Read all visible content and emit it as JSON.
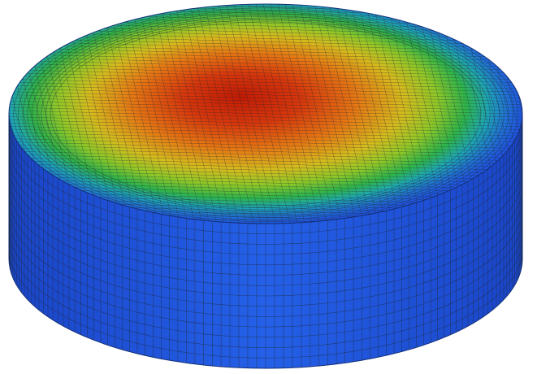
{
  "figure": {
    "subject": "cylinder-fem-mesh-contour",
    "colormap": {
      "stops": [
        "#c21a04",
        "#e65a10",
        "#d9b81e",
        "#8ec828",
        "#2fb44a",
        "#1ea7b8",
        "#1f55d8"
      ],
      "side_color": "#1f55e0",
      "edge_line_color": "#202830"
    }
  }
}
